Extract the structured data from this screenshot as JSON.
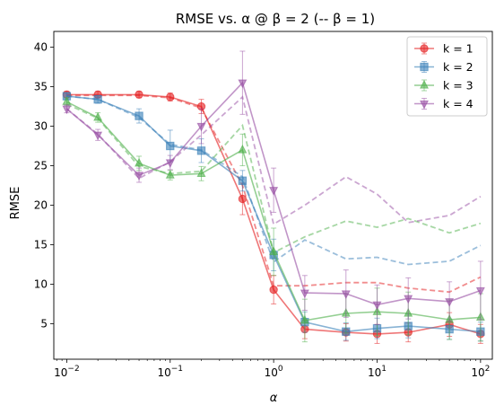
{
  "chart_data": {
    "type": "line",
    "title": "RMSE vs. α @ β = 2 (-- β = 1)",
    "xlabel": "α",
    "ylabel": "RMSE",
    "xscale": "log",
    "xlim": [
      0.0075,
      130
    ],
    "ylim": [
      0.5,
      42
    ],
    "grid": false,
    "legend_position": "top-right",
    "x": [
      0.01,
      0.02,
      0.05,
      0.1,
      0.2,
      0.5,
      1,
      2,
      5,
      10,
      20,
      50,
      100
    ],
    "x_ticks": [
      {
        "value": 0.01,
        "base": "10",
        "exp": "−2"
      },
      {
        "value": 0.1,
        "base": "10",
        "exp": "−1"
      },
      {
        "value": 1,
        "base": "10",
        "exp": "0"
      },
      {
        "value": 10,
        "base": "10",
        "exp": "1"
      },
      {
        "value": 100,
        "base": "10",
        "exp": "2"
      }
    ],
    "y_ticks": [
      5,
      10,
      15,
      20,
      25,
      30,
      35,
      40
    ],
    "series": [
      {
        "name": "k = 1",
        "color": "#e41a1c",
        "marker": "circle",
        "values": [
          34.0,
          34.0,
          34.0,
          33.7,
          32.5,
          20.8,
          9.3,
          4.3,
          3.9,
          3.7,
          3.9,
          4.9,
          3.7
        ],
        "errors": [
          0.4,
          0.4,
          0.4,
          0.5,
          0.9,
          2.0,
          1.8,
          1.2,
          1.1,
          1.2,
          1.2,
          1.5,
          1.2
        ],
        "dashed_values": [
          33.9,
          33.9,
          33.9,
          33.6,
          32.3,
          22.5,
          9.8,
          9.8,
          10.2,
          10.2,
          9.5,
          9.0,
          10.9
        ]
      },
      {
        "name": "k = 2",
        "color": "#377eb8",
        "marker": "square",
        "values": [
          33.8,
          33.4,
          31.3,
          27.5,
          26.9,
          23.1,
          13.7,
          5.2,
          4.0,
          4.4,
          4.7,
          4.3,
          4.0
        ],
        "errors": [
          0.4,
          0.5,
          0.9,
          2.0,
          1.5,
          1.3,
          2.0,
          1.3,
          1.1,
          1.3,
          1.5,
          1.3,
          1.2
        ],
        "dashed_values": [
          33.8,
          33.4,
          31.1,
          27.7,
          27.0,
          23.6,
          12.8,
          15.6,
          13.2,
          13.4,
          12.5,
          12.9,
          14.9
        ]
      },
      {
        "name": "k = 3",
        "color": "#4daf4a",
        "marker": "triangle-up",
        "values": [
          33.1,
          31.1,
          25.3,
          23.8,
          24.0,
          27.0,
          14.1,
          5.4,
          6.3,
          6.5,
          6.3,
          5.5,
          5.8
        ],
        "errors": [
          0.5,
          0.6,
          0.9,
          0.6,
          0.9,
          2.0,
          3.0,
          2.7,
          2.5,
          3.0,
          2.7,
          2.5,
          3.0
        ],
        "dashed_values": [
          32.8,
          31.0,
          24.9,
          24.0,
          24.3,
          30.1,
          14.0,
          16.0,
          18.0,
          17.2,
          18.3,
          16.5,
          17.7
        ]
      },
      {
        "name": "k = 4",
        "color": "#984ea3",
        "marker": "triangle-down",
        "values": [
          32.2,
          28.9,
          23.8,
          25.4,
          30.0,
          35.5,
          21.9,
          8.9,
          8.8,
          7.4,
          8.2,
          7.8,
          9.2
        ],
        "errors": [
          0.5,
          0.7,
          0.9,
          0.9,
          2.2,
          4.0,
          2.8,
          2.2,
          3.0,
          2.5,
          2.6,
          2.5,
          3.7
        ],
        "dashed_values": [
          32.2,
          29.0,
          23.4,
          25.5,
          28.9,
          33.7,
          17.6,
          20.0,
          23.6,
          21.4,
          17.8,
          18.7,
          21.1
        ]
      }
    ]
  }
}
